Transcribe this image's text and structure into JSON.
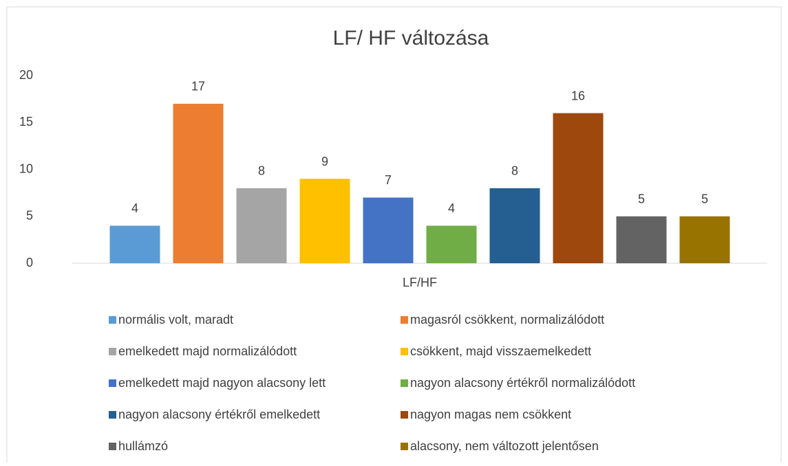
{
  "chart_data": {
    "type": "bar",
    "title": "LF/ HF változása",
    "categories": [
      "LF/HF"
    ],
    "series": [
      {
        "name": "normális volt, maradt",
        "color": "#5b9bd5",
        "values": [
          4
        ]
      },
      {
        "name": "magasról csökkent, normalizálódott",
        "color": "#ed7d31",
        "values": [
          17
        ]
      },
      {
        "name": "emelkedett majd normalizálódott",
        "color": "#a5a5a5",
        "values": [
          8
        ]
      },
      {
        "name": "csökkent, majd visszaemelkedett",
        "color": "#ffc000",
        "values": [
          9
        ]
      },
      {
        "name": "emelkedett majd nagyon alacsony lett",
        "color": "#4472c4",
        "values": [
          7
        ]
      },
      {
        "name": "nagyon alacsony értékről normalizálódott",
        "color": "#70ad47",
        "values": [
          4
        ]
      },
      {
        "name": "nagyon alacsony értékről emelkedett",
        "color": "#255e91",
        "values": [
          8
        ]
      },
      {
        "name": "nagyon magas nem csökkent",
        "color": "#9e480e",
        "values": [
          16
        ]
      },
      {
        "name": "hullámzó",
        "color": "#636363",
        "values": [
          5
        ]
      },
      {
        "name": "alacsony, nem változott jelentősen",
        "color": "#997300",
        "values": [
          5
        ]
      }
    ],
    "ylim": [
      0,
      20
    ],
    "yticks": [
      0,
      5,
      10,
      15,
      20
    ],
    "grid": false,
    "legend": "bottom"
  }
}
